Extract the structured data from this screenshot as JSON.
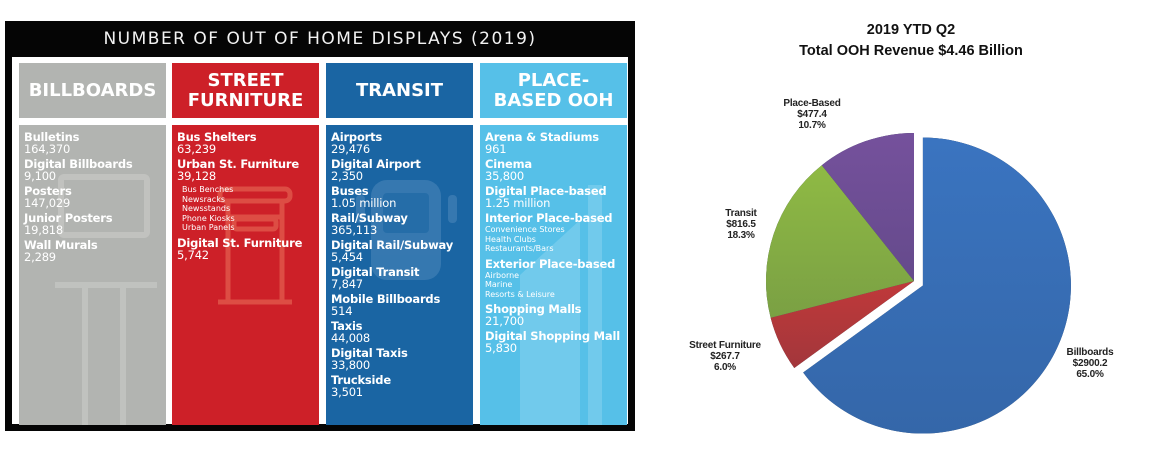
{
  "infographic": {
    "title": "NUMBER OF OUT OF HOME DISPLAYS (2019)",
    "columns": [
      {
        "header_line1": "BILLBOARDS",
        "header_line2": "",
        "color": "#b2b4b1",
        "icon": "billboard-icon",
        "items": [
          {
            "label": "Bulletins",
            "value": "164,370"
          },
          {
            "label": "Digital Billboards",
            "value": "9,100"
          },
          {
            "label": "Posters",
            "value": "147,029"
          },
          {
            "label": "Junior Posters",
            "value": "19,818"
          },
          {
            "label": "Wall Murals",
            "value": "2,289"
          }
        ]
      },
      {
        "header_line1": "STREET",
        "header_line2": "FURNITURE",
        "color": "#cd2028",
        "icon": "mailbox-icon",
        "items": [
          {
            "label": "Bus Shelters",
            "value": "63,239"
          },
          {
            "label": "Urban St. Furniture",
            "value": "39,128",
            "sub": [
              "Bus Benches",
              "Newsracks",
              "Newsstands",
              "Phone Kiosks",
              "Urban Panels"
            ]
          },
          {
            "label": "Digital St. Furniture",
            "value": "5,742"
          }
        ]
      },
      {
        "header_line1": "TRANSIT",
        "header_line2": "",
        "color": "#1a65a3",
        "icon": "bus-icon",
        "items": [
          {
            "label": "Airports",
            "value": "29,476"
          },
          {
            "label": "Digital Airport",
            "value": "2,350"
          },
          {
            "label": "Buses",
            "value": "1.05 million"
          },
          {
            "label": "Rail/Subway",
            "value": "365,113"
          },
          {
            "label": "Digital Rail/Subway",
            "value": "5,454"
          },
          {
            "label": "Digital Transit",
            "value": "7,847"
          },
          {
            "label": "Mobile Billboards",
            "value": "514"
          },
          {
            "label": "Taxis",
            "value": "44,008"
          },
          {
            "label": "Digital Taxis",
            "value": "33,800"
          },
          {
            "label": "Truckside",
            "value": "3,501"
          }
        ]
      },
      {
        "header_line1": "PLACE-",
        "header_line2": "BASED OOH",
        "color": "#56c0e8",
        "icon": "building-icon",
        "items": [
          {
            "label": "Arena & Stadiums",
            "value": "961"
          },
          {
            "label": "Cinema",
            "value": "35,800"
          },
          {
            "label": "Digital Place-based",
            "value": "1.25 million"
          },
          {
            "label": "Interior Place-based",
            "value": "",
            "sub": [
              "Convenience Stores",
              "Health Clubs",
              "Restaurants/Bars"
            ]
          },
          {
            "label": "Exterior Place-based",
            "value": "",
            "sub": [
              "Airborne",
              "Marine",
              "Resorts & Leisure"
            ]
          },
          {
            "label": "Shopping Malls",
            "value": "21,700"
          },
          {
            "label": "Digital Shopping Mall",
            "value": "5,830"
          }
        ]
      }
    ]
  },
  "chart_data": {
    "type": "pie",
    "title": "2019 YTD Q2",
    "subtitle": "Total OOH Revenue $4.46 Billion",
    "units": "$ millions",
    "labels": [
      "Billboards",
      "Street Furniture",
      "Transit",
      "Place-Based"
    ],
    "values": [
      2900.2,
      267.7,
      816.5,
      477.4
    ],
    "value_labels": [
      "$2900.2",
      "$267.7",
      "$816.5",
      "$477.4"
    ],
    "percent_labels": [
      "65.0%",
      "6.0%",
      "18.3%",
      "10.7%"
    ],
    "percents": [
      65.0,
      6.0,
      18.3,
      10.7
    ],
    "colors": [
      "#3a74c0",
      "#c0393a",
      "#8fba44",
      "#75519c"
    ],
    "exploded": [
      "Billboards"
    ],
    "start_angle": "12 o'clock",
    "direction": "clockwise",
    "legend": "none"
  }
}
